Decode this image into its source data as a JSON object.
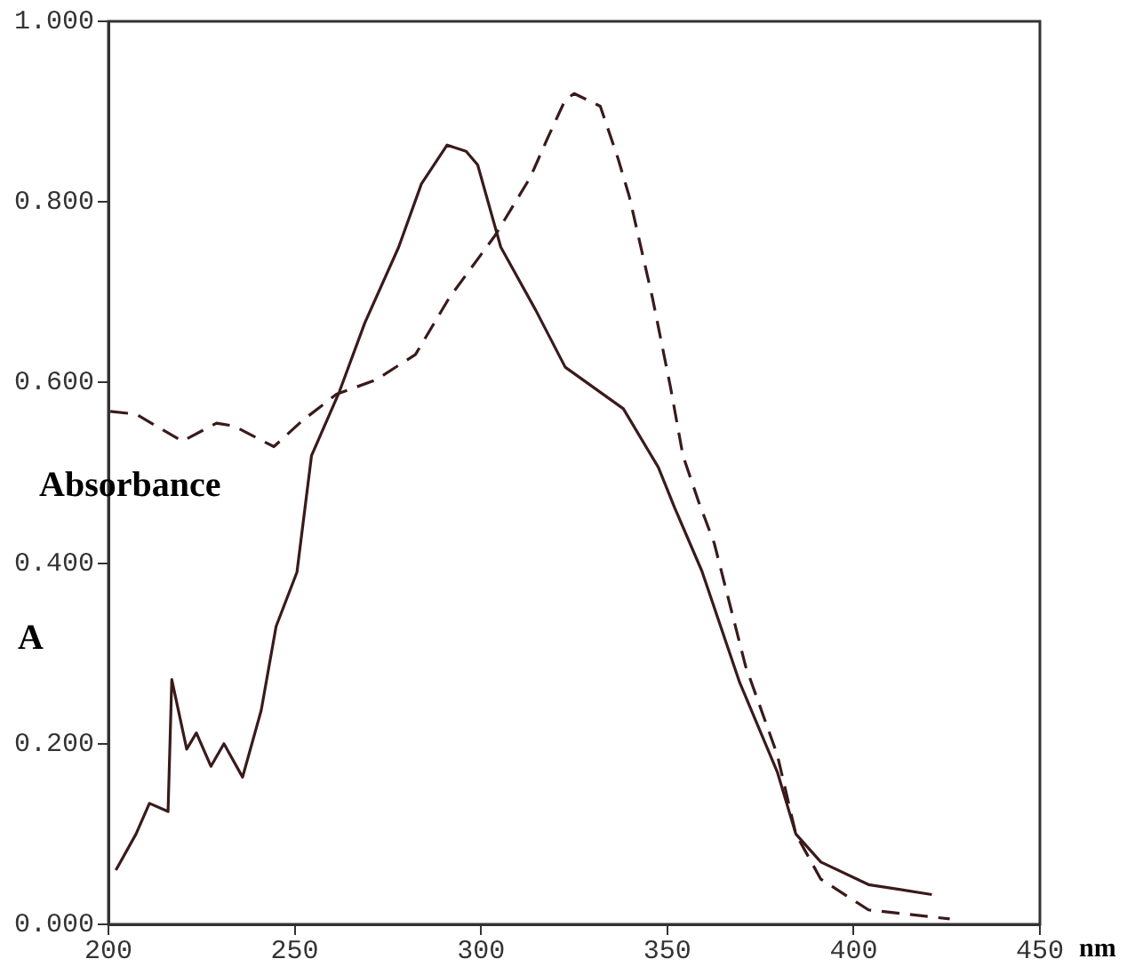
{
  "chart_data": {
    "type": "line",
    "xlabel": "nm",
    "ylabel": "Absorbance",
    "annotations": [
      "A"
    ],
    "xlim": [
      200,
      450
    ],
    "xticks": [
      200,
      250,
      300,
      350,
      400,
      450
    ],
    "ylim": [
      0,
      1
    ],
    "yticks": [
      {
        "value": 0,
        "label": "0.000"
      },
      {
        "value": 0.2,
        "label": "0.200"
      },
      {
        "value": 0.4,
        "label": "0.400"
      },
      {
        "value": 0.6,
        "label": "0.600"
      },
      {
        "value": 0.8,
        "label": "0.800"
      },
      {
        "value": 1,
        "label": "1.000"
      }
    ],
    "grid": false,
    "legend": false,
    "marker": "none",
    "series": [
      {
        "color": "#3a1a1a",
        "line_style": "solid",
        "x": [
          202,
          207.4,
          211,
          216,
          217,
          221,
          223.6,
          227.5,
          231,
          236,
          241,
          245,
          250.6,
          254.5,
          262,
          268.8,
          277.9,
          284,
          290.9,
          296,
          299.1,
          305.3,
          314.7,
          322.6,
          338.2,
          347.6,
          352,
          359.3,
          369.4,
          379.5,
          384.5,
          391.2,
          404,
          421
        ],
        "values": [
          0.06,
          0.1,
          0.134,
          0.125,
          0.271,
          0.194,
          0.212,
          0.175,
          0.2,
          0.163,
          0.237,
          0.33,
          0.39,
          0.519,
          0.59,
          0.666,
          0.75,
          0.82,
          0.863,
          0.856,
          0.841,
          0.75,
          0.68,
          0.617,
          0.571,
          0.506,
          0.461,
          0.391,
          0.268,
          0.169,
          0.1,
          0.069,
          0.044,
          0.033
        ]
      },
      {
        "color": "#3a1a1a",
        "line_style": "dashed",
        "x": [
          200.5,
          207.4,
          219.8,
          229,
          233.6,
          244.4,
          252.1,
          261.2,
          271.8,
          282.4,
          291.5,
          303.8,
          313.2,
          317.9,
          322.6,
          325,
          332,
          336.7,
          339.8,
          346,
          350.8,
          354.2,
          358.4,
          362.6,
          371,
          379.5,
          384.5,
          391.2,
          404,
          425.8
        ],
        "values": [
          0.568,
          0.565,
          0.535,
          0.555,
          0.552,
          0.529,
          0.558,
          0.587,
          0.603,
          0.631,
          0.694,
          0.763,
          0.827,
          0.871,
          0.913,
          0.92,
          0.906,
          0.849,
          0.806,
          0.694,
          0.596,
          0.519,
          0.468,
          0.422,
          0.286,
          0.188,
          0.1,
          0.05,
          0.016,
          0.006
        ]
      }
    ]
  }
}
